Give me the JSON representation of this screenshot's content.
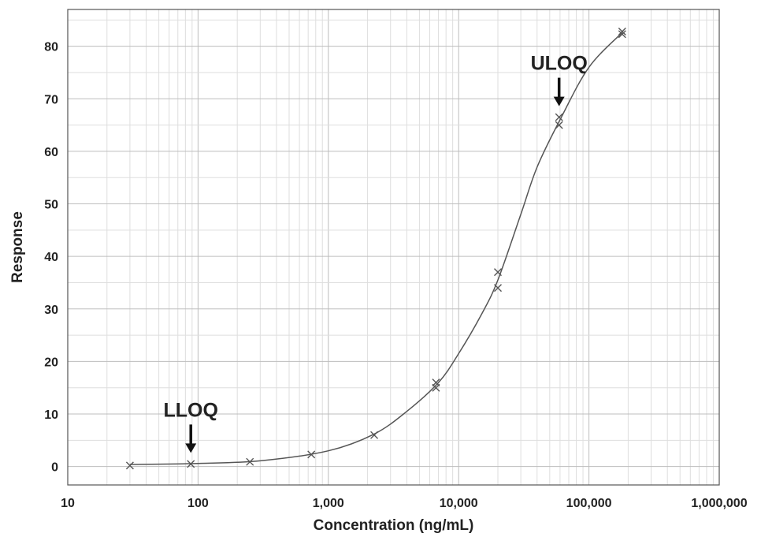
{
  "chart_data": {
    "type": "scatter",
    "title": "",
    "xlabel": "Concentration (ng/mL)",
    "ylabel": "Response",
    "x_scale": "log",
    "xlim": [
      10,
      1000000
    ],
    "ylim": [
      -3.5,
      87
    ],
    "x_ticks": [
      10,
      100,
      1000,
      10000,
      100000,
      1000000
    ],
    "x_tick_labels": [
      "10",
      "100",
      "1,000",
      "10,000",
      "100,000",
      "1,000,000"
    ],
    "y_ticks": [
      0,
      10,
      20,
      30,
      40,
      50,
      60,
      70,
      80
    ],
    "y_tick_labels": [
      "0",
      "10",
      "20",
      "30",
      "40",
      "50",
      "60",
      "70",
      "80"
    ],
    "grid": true,
    "series": [
      {
        "marker": "x",
        "x": [
          30,
          88,
          250,
          740,
          2250,
          6700,
          6700,
          20000,
          20000,
          59000,
          59000,
          180000,
          180000
        ],
        "y": [
          0.2,
          0.5,
          0.9,
          2.3,
          6.0,
          16.0,
          15.0,
          37.0,
          34.0,
          66.5,
          65.0,
          82.8,
          82.3
        ]
      }
    ],
    "fit_curve": {
      "x": [
        30,
        100,
        300,
        1000,
        2250,
        4000,
        7000,
        10000,
        15000,
        20000,
        30000,
        40000,
        60000,
        100000,
        180000
      ],
      "y": [
        0.4,
        0.6,
        1.1,
        3.0,
        6.2,
        10.5,
        16.0,
        21.5,
        29.0,
        35.5,
        48.0,
        57.0,
        66.0,
        76.0,
        82.6
      ]
    },
    "annotations": [
      {
        "label": "LLOQ",
        "x": 88,
        "y": 0.5
      },
      {
        "label": "ULOQ",
        "x": 59000,
        "y": 66.5
      }
    ]
  }
}
